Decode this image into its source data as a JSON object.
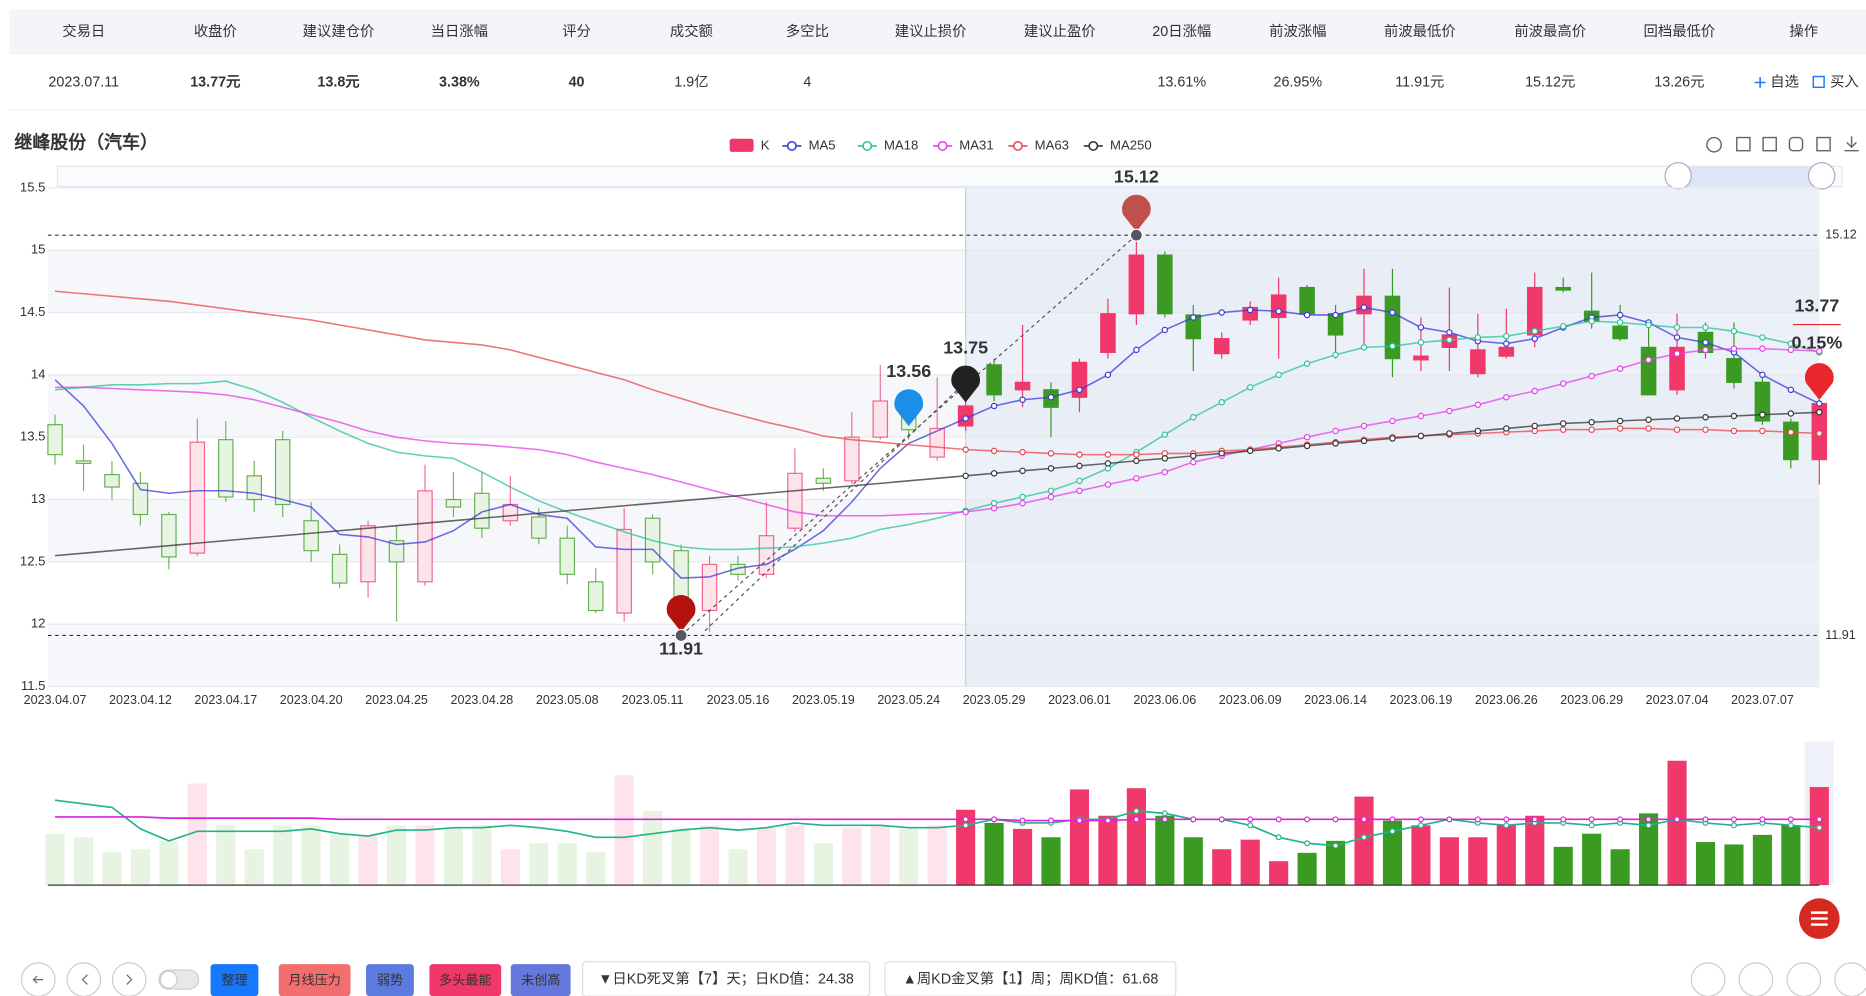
{
  "table": {
    "headers": [
      "交易日",
      "收盘价",
      "建议建仓价",
      "当日涨幅",
      "评分",
      "成交额",
      "多空比",
      "建议止损价",
      "建议止盈价",
      "20日涨幅",
      "前波涨幅",
      "前波最低价",
      "前波最高价",
      "回档最低价",
      "操作"
    ],
    "rows": [
      [
        "2023.07.11",
        "13.77元",
        "13.8元",
        "3.38%",
        "40",
        "1.9亿",
        "4",
        null,
        null,
        "13.61%",
        "26.95%",
        "11.91元",
        "15.12元",
        "13.26元"
      ]
    ],
    "actions": [
      "自选",
      "买入"
    ]
  },
  "chart_data": {
    "type": "candlestick",
    "title": "继峰股份（汽车）",
    "categories": [
      "2023.04.07",
      null,
      null,
      "2023.04.12",
      null,
      null,
      "2023.04.17",
      null,
      null,
      "2023.04.20",
      null,
      null,
      "2023.04.25",
      null,
      null,
      "2023.04.28",
      null,
      null,
      "2023.05.08",
      null,
      null,
      "2023.05.11",
      null,
      null,
      "2023.05.16",
      null,
      null,
      "2023.05.19",
      null,
      null,
      "2023.05.24",
      null,
      null,
      "2023.05.29",
      null,
      null,
      "2023.06.01",
      null,
      null,
      "2023.06.06",
      null,
      null,
      "2023.06.09",
      null,
      null,
      "2023.06.14",
      null,
      null,
      "2023.06.19",
      null,
      null,
      "2023.06.26",
      null,
      null,
      "2023.06.29",
      null,
      null,
      "2023.07.04",
      null,
      null,
      "2023.07.07",
      null,
      null
    ],
    "legend_name": "K",
    "up_color": "#f0386a",
    "down_color": "#3a9a22",
    "highlight_range": [
      32,
      62
    ],
    "open": [
      13.6,
      13.31,
      13.2,
      13.13,
      12.88,
      12.57,
      13.48,
      13.19,
      13.48,
      12.83,
      12.56,
      12.34,
      12.67,
      12.34,
      13.0,
      13.05,
      12.83,
      12.86,
      12.69,
      12.34,
      12.09,
      12.85,
      12.59,
      12.11,
      12.48,
      12.4,
      12.77,
      13.17,
      13.15,
      13.5,
      13.67,
      13.34,
      13.59,
      14.08,
      13.88,
      13.88,
      13.82,
      14.18,
      14.49,
      14.96,
      14.48,
      14.17,
      14.44,
      14.46,
      14.7,
      14.49,
      14.49,
      14.63,
      14.12,
      14.22,
      14.01,
      14.15,
      14.32,
      14.7,
      14.51,
      14.39,
      14.22,
      13.88,
      14.34,
      14.13,
      13.94,
      13.62,
      13.32
    ],
    "high": [
      13.68,
      13.44,
      13.31,
      13.22,
      12.9,
      13.65,
      13.63,
      13.31,
      13.55,
      12.98,
      12.64,
      12.83,
      12.79,
      13.28,
      13.22,
      13.22,
      13.19,
      12.93,
      12.79,
      12.45,
      12.93,
      12.88,
      12.64,
      12.55,
      12.55,
      12.98,
      13.41,
      13.25,
      13.7,
      14.08,
      13.84,
      13.98,
      13.98,
      14.13,
      14.4,
      13.94,
      14.13,
      14.61,
      15.12,
      14.99,
      14.56,
      14.34,
      14.59,
      14.78,
      14.72,
      14.56,
      14.85,
      14.85,
      14.46,
      14.7,
      14.49,
      14.53,
      14.82,
      14.78,
      14.82,
      14.56,
      14.44,
      14.49,
      14.42,
      14.42,
      13.98,
      13.65,
      13.8
    ],
    "low": [
      13.28,
      13.07,
      13.0,
      12.79,
      12.44,
      12.55,
      12.98,
      12.9,
      12.86,
      12.5,
      12.29,
      12.21,
      12.02,
      12.31,
      12.86,
      12.69,
      12.79,
      12.64,
      12.32,
      12.09,
      12.02,
      12.4,
      11.91,
      11.94,
      12.35,
      12.37,
      12.74,
      13.07,
      13.12,
      13.48,
      13.48,
      13.31,
      13.55,
      13.79,
      13.74,
      13.5,
      13.7,
      14.13,
      14.4,
      14.46,
      14.03,
      14.13,
      14.4,
      14.13,
      14.46,
      14.13,
      14.22,
      13.98,
      14.03,
      14.03,
      13.98,
      14.13,
      14.22,
      14.66,
      14.37,
      14.27,
      13.84,
      13.84,
      14.13,
      13.89,
      13.6,
      13.25,
      13.12
    ],
    "close": [
      13.36,
      13.29,
      13.1,
      12.88,
      12.54,
      13.46,
      13.02,
      13.0,
      12.96,
      12.59,
      12.33,
      12.79,
      12.5,
      13.07,
      12.94,
      12.77,
      12.96,
      12.69,
      12.4,
      12.11,
      12.76,
      12.5,
      12.11,
      12.48,
      12.4,
      12.71,
      13.21,
      13.13,
      13.5,
      13.79,
      13.56,
      13.57,
      13.75,
      13.84,
      13.94,
      13.74,
      14.1,
      14.49,
      14.96,
      14.49,
      14.29,
      14.29,
      14.54,
      14.64,
      14.49,
      14.32,
      14.63,
      14.13,
      14.15,
      14.32,
      14.2,
      14.22,
      14.7,
      14.68,
      14.43,
      14.29,
      13.84,
      14.22,
      14.18,
      13.94,
      13.63,
      13.32,
      13.77
    ],
    "series": [
      {
        "name": "MA5",
        "color": "#3a3ad8",
        "values": [
          13.96,
          13.75,
          13.45,
          13.08,
          13.05,
          13.07,
          13.07,
          13.05,
          13.0,
          12.94,
          12.72,
          12.7,
          12.64,
          12.66,
          12.75,
          12.9,
          12.96,
          12.88,
          12.85,
          12.62,
          12.6,
          12.6,
          12.37,
          12.38,
          12.45,
          12.48,
          12.6,
          12.75,
          12.98,
          13.25,
          13.45,
          13.55,
          13.65,
          13.75,
          13.8,
          13.82,
          13.88,
          14.0,
          14.2,
          14.36,
          14.46,
          14.5,
          14.52,
          14.51,
          14.48,
          14.48,
          14.54,
          14.5,
          14.38,
          14.34,
          14.27,
          14.25,
          14.29,
          14.38,
          14.46,
          14.48,
          14.42,
          14.3,
          14.26,
          14.18,
          14.0,
          13.88,
          13.77
        ]
      },
      {
        "name": "MA18",
        "color": "#2cc29a",
        "values": [
          13.88,
          13.9,
          13.92,
          13.92,
          13.93,
          13.93,
          13.95,
          13.88,
          13.78,
          13.66,
          13.55,
          13.45,
          13.38,
          13.35,
          13.33,
          13.22,
          13.1,
          12.99,
          12.9,
          12.82,
          12.74,
          12.67,
          12.62,
          12.6,
          12.6,
          12.61,
          12.62,
          12.65,
          12.69,
          12.76,
          12.8,
          12.85,
          12.91,
          12.97,
          13.02,
          13.07,
          13.15,
          13.25,
          13.38,
          13.52,
          13.66,
          13.78,
          13.9,
          14.0,
          14.09,
          14.16,
          14.22,
          14.23,
          14.26,
          14.28,
          14.3,
          14.31,
          14.35,
          14.39,
          14.43,
          14.42,
          14.4,
          14.38,
          14.38,
          14.35,
          14.3,
          14.25,
          14.18
        ]
      },
      {
        "name": "MA31",
        "color": "#e83ee8",
        "values": [
          13.9,
          13.9,
          13.89,
          13.88,
          13.87,
          13.86,
          13.84,
          13.8,
          13.74,
          13.68,
          13.62,
          13.55,
          13.5,
          13.47,
          13.45,
          13.44,
          13.42,
          13.4,
          13.36,
          13.3,
          13.25,
          13.2,
          13.14,
          13.08,
          13.02,
          12.96,
          12.9,
          12.87,
          12.87,
          12.87,
          12.88,
          12.89,
          12.9,
          12.93,
          12.97,
          13.02,
          13.07,
          13.12,
          13.17,
          13.22,
          13.3,
          13.35,
          13.4,
          13.45,
          13.5,
          13.55,
          13.59,
          13.63,
          13.67,
          13.71,
          13.76,
          13.82,
          13.87,
          13.93,
          13.99,
          14.05,
          14.12,
          14.17,
          14.2,
          14.21,
          14.21,
          14.2,
          14.19
        ]
      },
      {
        "name": "MA63",
        "color": "#e8474a",
        "values": [
          14.67,
          14.65,
          14.63,
          14.61,
          14.59,
          14.56,
          14.53,
          14.5,
          14.47,
          14.44,
          14.4,
          14.36,
          14.32,
          14.28,
          14.26,
          14.24,
          14.2,
          14.14,
          14.08,
          14.02,
          13.96,
          13.88,
          13.81,
          13.74,
          13.68,
          13.62,
          13.57,
          13.51,
          13.48,
          13.46,
          13.44,
          13.42,
          13.4,
          13.39,
          13.38,
          13.37,
          13.36,
          13.36,
          13.36,
          13.37,
          13.37,
          13.39,
          13.4,
          13.42,
          13.44,
          13.46,
          13.48,
          13.5,
          13.51,
          13.52,
          13.53,
          13.54,
          13.55,
          13.56,
          13.56,
          13.57,
          13.57,
          13.56,
          13.56,
          13.55,
          13.55,
          13.54,
          13.53
        ]
      },
      {
        "name": "MA250",
        "color": "#333333",
        "values": [
          12.55,
          12.57,
          12.59,
          12.61,
          12.63,
          12.65,
          12.67,
          12.69,
          12.71,
          12.73,
          12.75,
          12.77,
          12.79,
          12.81,
          12.83,
          12.85,
          12.87,
          12.89,
          12.91,
          12.93,
          12.95,
          12.97,
          12.99,
          13.01,
          13.03,
          13.05,
          13.07,
          13.09,
          13.11,
          13.13,
          13.15,
          13.17,
          13.19,
          13.21,
          13.23,
          13.25,
          13.27,
          13.29,
          13.31,
          13.33,
          13.35,
          13.37,
          13.39,
          13.41,
          13.43,
          13.45,
          13.47,
          13.49,
          13.51,
          13.53,
          13.55,
          13.57,
          13.59,
          13.61,
          13.62,
          13.63,
          13.64,
          13.65,
          13.66,
          13.67,
          13.68,
          13.69,
          13.7
        ]
      }
    ],
    "ylim": [
      11.5,
      15.5
    ],
    "yticks": [
      11.5,
      12,
      12.5,
      13,
      13.5,
      14,
      14.5,
      15,
      15.5
    ],
    "grid": true,
    "ref_lines": [
      15.12,
      11.91
    ],
    "markers": [
      {
        "value": 15.12,
        "of": "high",
        "color": "#c0504d"
      },
      {
        "value": 11.91,
        "of": "low",
        "color": "#b3120f"
      },
      {
        "value": 13.56,
        "of": "close",
        "color": "#1b8fe8"
      },
      {
        "value": 13.75,
        "of": "close",
        "color": "#222222"
      },
      {
        "value": 13.77,
        "of": "close",
        "color": "#e8262b",
        "change": 0.15,
        "change_label": "0.15%"
      }
    ],
    "volume": {
      "values": [
        43,
        40,
        28,
        30,
        37,
        85,
        50,
        30,
        50,
        50,
        42,
        42,
        50,
        50,
        48,
        50,
        30,
        35,
        35,
        28,
        92,
        62,
        48,
        50,
        30,
        48,
        50,
        35,
        48,
        50,
        47,
        50,
        63,
        52,
        47,
        40,
        80,
        58,
        81,
        58,
        40,
        30,
        38,
        20,
        27,
        37,
        74,
        54,
        50,
        40,
        40,
        50,
        58,
        32,
        43,
        30,
        60,
        104,
        36,
        34,
        42,
        50,
        82
      ],
      "ylim": [
        0,
        120
      ],
      "lines": [
        {
          "color": "#1fb58a",
          "values": [
            71,
            68,
            65,
            47,
            37,
            45,
            45,
            45,
            45,
            47,
            43,
            41,
            46,
            46,
            48,
            48,
            50,
            48,
            45,
            40,
            40,
            43,
            46,
            48,
            46,
            48,
            52,
            50,
            50,
            50,
            48,
            48,
            50,
            55,
            52,
            52,
            55,
            55,
            62,
            60,
            55,
            55,
            50,
            40,
            35,
            33,
            40,
            45,
            50,
            55,
            52,
            50,
            52,
            52,
            50,
            52,
            50,
            55,
            52,
            50,
            52,
            50,
            48
          ]
        },
        {
          "color": "#e020e0",
          "values": [
            57,
            57,
            57,
            57,
            56,
            56,
            56,
            56,
            56,
            56,
            55,
            55,
            55,
            55,
            55,
            55,
            55,
            55,
            55,
            55,
            55,
            55,
            55,
            55,
            55,
            55,
            55,
            55,
            55,
            55,
            55,
            55,
            55,
            55,
            54,
            54,
            54,
            54,
            55,
            55,
            55,
            55,
            55,
            55,
            55,
            55,
            55,
            55,
            55,
            55,
            55,
            55,
            55,
            55,
            55,
            55,
            55,
            55,
            55,
            55,
            55,
            55,
            55
          ]
        }
      ]
    }
  },
  "toolbar": {
    "tags": [
      "整理",
      "月线压力",
      "弱势",
      "多头最能",
      "未创高"
    ],
    "signals": [
      "▼日KD死叉第【7】天；日KD值：24.38",
      "▲周KD金叉第【1】周；周KD值：61.68"
    ]
  }
}
